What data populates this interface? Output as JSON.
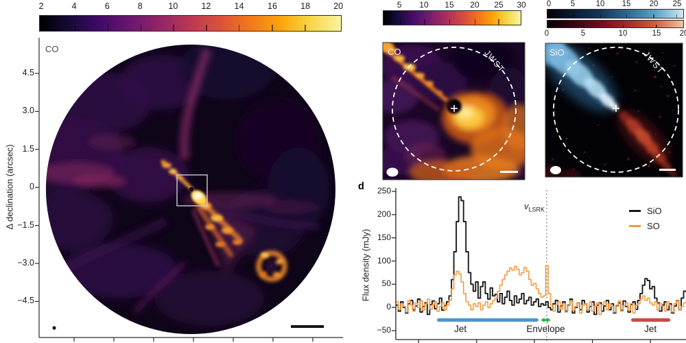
{
  "colors": {
    "sio_line": "#1a1a1a",
    "so_line": "#f59a3c",
    "jet_blue": "#4e97d1",
    "envelope_green": "#35b44a",
    "jet_red": "#cd4a42",
    "cmap_inferno": [
      "#000004",
      "#160b39",
      "#420a68",
      "#6a176e",
      "#932667",
      "#bc3754",
      "#dd513a",
      "#f37819",
      "#fca50a",
      "#f6d746",
      "#fbf3a0"
    ],
    "cmap_blue": [
      "#02020a",
      "#0b1b33",
      "#14395c",
      "#2f6a96",
      "#5ea3c9",
      "#cfe6f2"
    ],
    "cmap_red": [
      "#050003",
      "#3d0512",
      "#750b20",
      "#a62b27",
      "#d0603c",
      "#f4c3a0"
    ]
  },
  "panel_a": {
    "molecule": "CO",
    "ylabel": "Δ declination (arcsec)",
    "y_ticks": [
      "4.5",
      "3.0",
      "1.5",
      "0",
      "−1.5",
      "−3.0",
      "−4.5"
    ],
    "colorbar": {
      "labels": [
        "2",
        "4",
        "6",
        "8",
        "10",
        "12",
        "14",
        "16",
        "18",
        "20"
      ],
      "fracs": [
        0.007,
        0.116,
        0.225,
        0.334,
        0.443,
        0.552,
        0.661,
        0.771,
        0.88,
        0.989
      ]
    }
  },
  "panel_b": {
    "molecule": "CO",
    "circle_label": "JWST",
    "colorbar": {
      "labels": [
        "5",
        "10",
        "15",
        "20",
        "25",
        "30"
      ],
      "fracs": [
        0.119,
        0.297,
        0.48,
        0.663,
        0.837,
        1.0
      ]
    }
  },
  "panel_c": {
    "molecule": "SiO",
    "circle_label": "JWST",
    "colorbar_blue": {
      "labels": [
        "0",
        "5",
        "10",
        "15",
        "20",
        "25"
      ],
      "fracs": [
        0.015,
        0.19,
        0.39,
        0.58,
        0.78,
        0.95
      ]
    },
    "colorbar_red": {
      "labels": [
        "0",
        "5",
        "10",
        "15",
        "20"
      ],
      "fracs": [
        0.0,
        0.265,
        0.555,
        0.8,
        1.0
      ]
    }
  },
  "panel_d": {
    "label": "d",
    "ylabel": "Flux density (mJy)",
    "vline": {
      "prefix": "v",
      "sub": "LSRK"
    },
    "legend": [
      {
        "name": "SiO"
      },
      {
        "name": "SO"
      }
    ]
  },
  "chart_data": {
    "type": "line",
    "title": "",
    "xlabel": "",
    "ylabel": "Flux density (mJy)",
    "ylim": [
      -50,
      250
    ],
    "y_ticks": [
      250,
      200,
      150,
      100,
      50,
      0,
      -50
    ],
    "x_ticks_channel": [
      9.4,
      33.4,
      57.3,
      81.3,
      105.3
    ],
    "channels": 120,
    "vline_channel": 62.4,
    "vline_label": "v_LSRK",
    "legend_position": "upper right",
    "grid": false,
    "series": [
      {
        "name": "SiO",
        "color": "#1a1a1a",
        "values": [
          5,
          -8,
          12,
          0,
          -12,
          8,
          15,
          -5,
          3,
          18,
          -10,
          2,
          10,
          -15,
          6,
          14,
          -3,
          8,
          20,
          -6,
          4,
          12,
          25,
          60,
          120,
          185,
          238,
          230,
          185,
          120,
          75,
          50,
          35,
          55,
          20,
          45,
          55,
          30,
          18,
          42,
          25,
          28,
          12,
          30,
          8,
          22,
          35,
          15,
          5,
          25,
          10,
          18,
          30,
          8,
          15,
          22,
          5,
          12,
          18,
          2,
          8,
          5,
          12,
          0,
          -5,
          8,
          15,
          -10,
          3,
          12,
          -8,
          5,
          18,
          -12,
          0,
          10,
          -5,
          15,
          8,
          -10,
          2,
          12,
          -15,
          5,
          10,
          -8,
          3,
          15,
          -5,
          8,
          -12,
          4,
          10,
          -6,
          14,
          2,
          -10,
          6,
          12,
          -4,
          15,
          30,
          48,
          62,
          58,
          40,
          45,
          20,
          10,
          -8,
          5,
          12,
          -5,
          8,
          -12,
          3,
          15,
          -5,
          20,
          35
        ]
      },
      {
        "name": "SO",
        "color": "#f59a3c",
        "values": [
          12,
          -5,
          8,
          2,
          -10,
          15,
          5,
          -8,
          10,
          0,
          14,
          -6,
          8,
          18,
          -4,
          6,
          12,
          -8,
          2,
          10,
          -5,
          5,
          15,
          40,
          70,
          78,
          72,
          55,
          30,
          12,
          5,
          -5,
          8,
          2,
          10,
          -5,
          5,
          12,
          0,
          8,
          15,
          20,
          35,
          48,
          60,
          70,
          78,
          85,
          80,
          88,
          82,
          70,
          75,
          86,
          78,
          60,
          48,
          52,
          40,
          30,
          22,
          25,
          90,
          30,
          5,
          -8,
          6,
          12,
          -4,
          8,
          -10,
          4,
          14,
          -6,
          2,
          10,
          -12,
          5,
          8,
          -5,
          12,
          -8,
          3,
          10,
          -15,
          6,
          12,
          -5,
          8,
          2,
          -10,
          5,
          14,
          -8,
          4,
          10,
          -6,
          8,
          -12,
          5,
          8,
          18,
          25,
          15,
          20,
          10,
          5,
          12,
          -5,
          8,
          3,
          -8,
          12,
          5,
          -10,
          8,
          15,
          -5,
          2,
          10
        ]
      }
    ],
    "regions": [
      {
        "label": "Jet",
        "color": "#4e97d1",
        "ch": [
          17,
          59
        ],
        "label_ch": 26.7,
        "style": "bar"
      },
      {
        "label": "Envelope",
        "color": "#35b44a",
        "ch": [
          59.9,
          64.1
        ],
        "label_ch": 62,
        "style": "arrow"
      },
      {
        "label": "Jet",
        "color": "#cd4a42",
        "ch": [
          97.3,
          113.5
        ],
        "label_ch": 105.3,
        "style": "bar"
      }
    ]
  }
}
